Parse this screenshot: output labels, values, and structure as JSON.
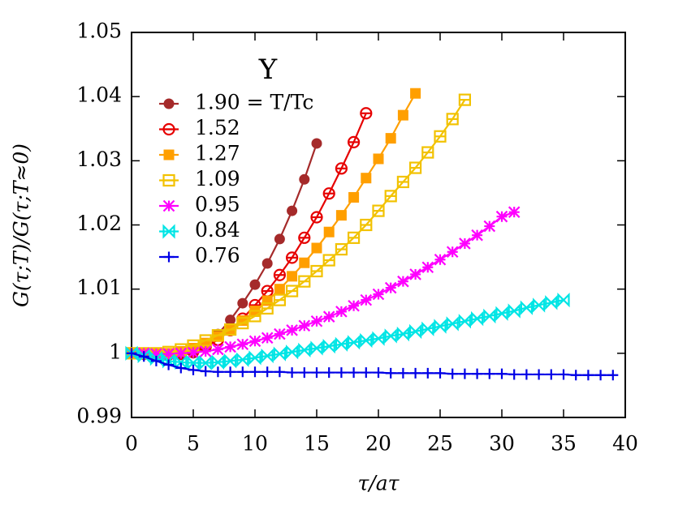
{
  "chart_data": {
    "type": "line",
    "annotation": "Υ",
    "x_label": "τ/aτ",
    "y_label": "G(τ;T)/G(τ;T≈0)",
    "xlim": [
      0,
      40
    ],
    "xticks": [
      0,
      5,
      10,
      15,
      20,
      25,
      30,
      35,
      40
    ],
    "ylim": [
      0.99,
      1.05
    ],
    "yticks": [
      0.99,
      1,
      1.01,
      1.02,
      1.03,
      1.04,
      1.05
    ],
    "legend": "upper-left",
    "series": [
      {
        "name": "1.90 = T/Tc",
        "color": "#a52a2a",
        "marker": "circle-filled",
        "x": [
          0,
          1,
          2,
          3,
          4,
          5,
          6,
          7,
          8,
          9,
          10,
          11,
          12,
          13,
          14,
          15
        ],
        "values": [
          1.0,
          0.9999,
          0.9998,
          0.9997,
          0.9998,
          1.0,
          1.001,
          1.003,
          1.0052,
          1.0078,
          1.0107,
          1.014,
          1.0178,
          1.0222,
          1.0271,
          1.0327
        ]
      },
      {
        "name": "1.52",
        "color": "#e60000",
        "marker": "circle-open",
        "x": [
          0,
          1,
          2,
          3,
          4,
          5,
          6,
          7,
          8,
          9,
          10,
          11,
          12,
          13,
          14,
          15,
          16,
          17,
          18,
          19
        ],
        "values": [
          1.0,
          0.9999,
          0.9998,
          0.9998,
          0.9999,
          1.0003,
          1.001,
          1.0021,
          1.0036,
          1.0054,
          1.0075,
          1.0097,
          1.0122,
          1.0149,
          1.018,
          1.0212,
          1.0249,
          1.0288,
          1.0329,
          1.0374
        ]
      },
      {
        "name": "1.27",
        "color": "#ff9f00",
        "marker": "square-filled",
        "x": [
          0,
          1,
          2,
          3,
          4,
          5,
          6,
          7,
          8,
          9,
          10,
          11,
          12,
          13,
          14,
          15,
          16,
          17,
          18,
          19,
          20,
          21,
          22,
          23
        ],
        "values": [
          1.0,
          0.9999,
          0.9999,
          1.0,
          1.0003,
          1.0008,
          1.0016,
          1.0026,
          1.0038,
          1.0051,
          1.0066,
          1.0082,
          1.01,
          1.012,
          1.0141,
          1.0164,
          1.0189,
          1.0215,
          1.0243,
          1.0273,
          1.0303,
          1.0335,
          1.0371,
          1.0405
        ]
      },
      {
        "name": "1.09",
        "color": "#f2c200",
        "marker": "square-open",
        "x": [
          0,
          1,
          2,
          3,
          4,
          5,
          6,
          7,
          8,
          9,
          10,
          11,
          12,
          13,
          14,
          15,
          16,
          17,
          18,
          19,
          20,
          21,
          22,
          23,
          24,
          25,
          26,
          27
        ],
        "values": [
          1.0,
          1.0,
          1.0,
          1.0002,
          1.0006,
          1.0012,
          1.002,
          1.0028,
          1.0037,
          1.0047,
          1.0058,
          1.007,
          1.0083,
          1.0097,
          1.0112,
          1.0128,
          1.0145,
          1.0162,
          1.018,
          1.02,
          1.0222,
          1.0245,
          1.0267,
          1.0289,
          1.0313,
          1.0338,
          1.0365,
          1.0395
        ]
      },
      {
        "name": "0.95",
        "color": "#ff00ff",
        "marker": "star",
        "x": [
          0,
          1,
          2,
          3,
          4,
          5,
          6,
          7,
          8,
          9,
          10,
          11,
          12,
          13,
          14,
          15,
          16,
          17,
          18,
          19,
          20,
          21,
          22,
          23,
          24,
          25,
          26,
          27,
          28,
          29,
          30,
          31
        ],
        "values": [
          1.0,
          1.0,
          0.9999,
          0.9999,
          1.0,
          1.0001,
          1.0003,
          1.0006,
          1.001,
          1.0014,
          1.0019,
          1.0024,
          1.003,
          1.0036,
          1.0043,
          1.005,
          1.0057,
          1.0065,
          1.0074,
          1.0083,
          1.0092,
          1.0102,
          1.0112,
          1.0123,
          1.0134,
          1.0146,
          1.0158,
          1.0171,
          1.0184,
          1.0198,
          1.0213,
          1.022
        ]
      },
      {
        "name": "0.84",
        "color": "#00e5e5",
        "marker": "bowtie",
        "x": [
          0,
          1,
          2,
          3,
          4,
          5,
          6,
          7,
          8,
          9,
          10,
          11,
          12,
          13,
          14,
          15,
          16,
          17,
          18,
          19,
          20,
          21,
          22,
          23,
          24,
          25,
          26,
          27,
          28,
          29,
          30,
          31,
          32,
          33,
          34,
          35
        ],
        "values": [
          1.0,
          0.9996,
          0.9992,
          0.9988,
          0.9986,
          0.9985,
          0.9985,
          0.9986,
          0.9988,
          0.999,
          0.9993,
          0.9996,
          0.9999,
          1.0002,
          1.0005,
          1.0008,
          1.0011,
          1.0014,
          1.0017,
          1.002,
          1.0023,
          1.0027,
          1.003,
          1.0034,
          1.0038,
          1.0042,
          1.0046,
          1.005,
          1.0054,
          1.0058,
          1.0062,
          1.0066,
          1.0071,
          1.0075,
          1.0079,
          1.0083
        ]
      },
      {
        "name": "0.76",
        "color": "#0000e6",
        "marker": "plus",
        "x": [
          0,
          1,
          2,
          3,
          4,
          5,
          6,
          7,
          8,
          9,
          10,
          11,
          12,
          13,
          14,
          15,
          16,
          17,
          18,
          19,
          20,
          21,
          22,
          23,
          24,
          25,
          26,
          27,
          28,
          29,
          30,
          31,
          32,
          33,
          34,
          35,
          36,
          37,
          38,
          39
        ],
        "values": [
          1.0,
          0.9995,
          0.9988,
          0.9982,
          0.9977,
          0.9974,
          0.9972,
          0.9971,
          0.9971,
          0.9971,
          0.9971,
          0.9971,
          0.9971,
          0.997,
          0.997,
          0.997,
          0.997,
          0.997,
          0.997,
          0.997,
          0.997,
          0.9969,
          0.9969,
          0.9969,
          0.9969,
          0.9969,
          0.9968,
          0.9968,
          0.9968,
          0.9968,
          0.9968,
          0.9967,
          0.9967,
          0.9967,
          0.9967,
          0.9967,
          0.9966,
          0.9966,
          0.9966,
          0.9966
        ]
      }
    ]
  }
}
